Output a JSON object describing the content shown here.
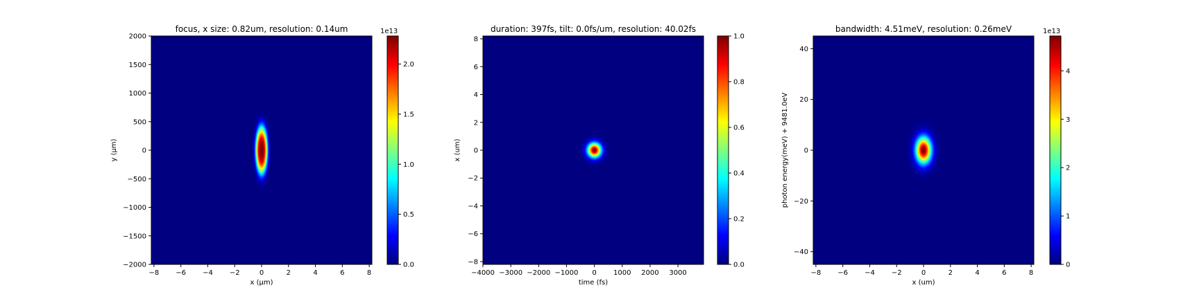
{
  "figure": {
    "colormap": "jet",
    "background_color": "#000080",
    "frame_color": "#000000"
  },
  "chart_data": [
    {
      "type": "heatmap",
      "title": "focus, x size: 0.82um, resolution: 0.14um",
      "xlabel": "x (μm)",
      "ylabel": "y (μm)",
      "xlim": [
        -8.2,
        8.2
      ],
      "ylim": [
        -2000,
        2000
      ],
      "xticks": [
        -8,
        -6,
        -4,
        -2,
        0,
        2,
        4,
        6,
        8
      ],
      "xtick_labels": [
        "−8",
        "−6",
        "−4",
        "−2",
        "0",
        "2",
        "4",
        "6",
        "8"
      ],
      "yticks": [
        -2000,
        -1500,
        -1000,
        -500,
        0,
        500,
        1000,
        1500,
        2000
      ],
      "ytick_labels": [
        "−2000",
        "−1500",
        "−1000",
        "−500",
        "0",
        "500",
        "1000",
        "1500",
        "2000"
      ],
      "blob": {
        "center": [
          0,
          0
        ],
        "sigma_x": 0.35,
        "sigma_y": 330,
        "flat_top": 1.6,
        "peak": 22800000000000.0
      },
      "colorbar": {
        "range": [
          0,
          22800000000000.0
        ],
        "offset_label": "1e13",
        "ticks": [
          0,
          5000000000000.0,
          10000000000000.0,
          15000000000000.0,
          20000000000000.0
        ],
        "tick_labels": [
          "0.0",
          "0.5",
          "1.0",
          "1.5",
          "2.0"
        ]
      }
    },
    {
      "type": "heatmap",
      "title": "duration: 397fs, tilt: 0.0fs/um, resolution: 40.02fs",
      "xlabel": "time (fs)",
      "ylabel": "x (um)",
      "xlim": [
        -4000,
        3920
      ],
      "ylim": [
        -8.2,
        8.2
      ],
      "xticks": [
        -4000,
        -3000,
        -2000,
        -1000,
        0,
        1000,
        2000,
        3000
      ],
      "xtick_labels": [
        "−4000",
        "−3000",
        "−2000",
        "−1000",
        "0",
        "1000",
        "2000",
        "3000"
      ],
      "yticks": [
        -8,
        -6,
        -4,
        -2,
        0,
        2,
        4,
        6,
        8
      ],
      "ytick_labels": [
        "−8",
        "−6",
        "−4",
        "−2",
        "0",
        "2",
        "4",
        "6",
        "8"
      ],
      "blob": {
        "center": [
          0,
          0
        ],
        "sigma_x": 170,
        "sigma_y": 0.36,
        "flat_top": 1.0,
        "peak": 1.0
      },
      "colorbar": {
        "range": [
          0,
          1.0
        ],
        "offset_label": "",
        "ticks": [
          0,
          0.2,
          0.4,
          0.6,
          0.8,
          1.0
        ],
        "tick_labels": [
          "0.0",
          "0.2",
          "0.4",
          "0.6",
          "0.8",
          "1.0"
        ]
      }
    },
    {
      "type": "heatmap",
      "title": "bandwidth: 4.51meV, resolution: 0.26meV",
      "xlabel": "x (um)",
      "ylabel": "photon energy(meV) + 9481.0eV",
      "xlim": [
        -8.2,
        8.2
      ],
      "ylim": [
        -45,
        45
      ],
      "xticks": [
        -8,
        -6,
        -4,
        -2,
        0,
        2,
        4,
        6,
        8
      ],
      "xtick_labels": [
        "−8",
        "−6",
        "−4",
        "−2",
        "0",
        "2",
        "4",
        "6",
        "8"
      ],
      "yticks": [
        -40,
        -20,
        0,
        20,
        40
      ],
      "ytick_labels": [
        "−40",
        "−20",
        "0",
        "20",
        "40"
      ],
      "blob": {
        "center": [
          0,
          0
        ],
        "sigma_x": 0.4,
        "sigma_y": 3.6,
        "flat_top": 1.0,
        "peak": 47200000000000.0
      },
      "colorbar": {
        "range": [
          0,
          47200000000000.0
        ],
        "offset_label": "1e13",
        "ticks": [
          0,
          10000000000000.0,
          20000000000000.0,
          30000000000000.0,
          40000000000000.0
        ],
        "tick_labels": [
          "0",
          "1",
          "2",
          "3",
          "4"
        ]
      }
    }
  ]
}
